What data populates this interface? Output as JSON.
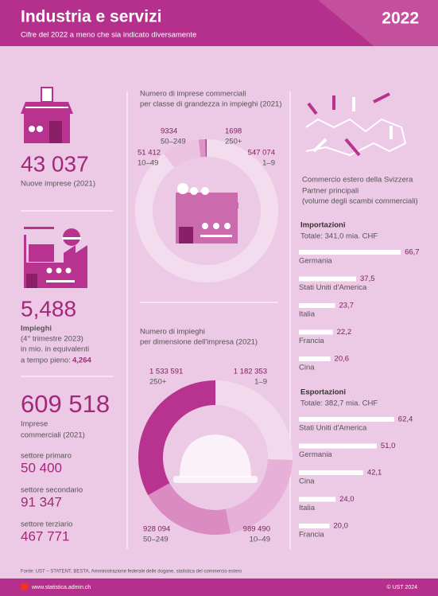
{
  "header": {
    "title": "Industria e servizi",
    "subtitle": "Cifre del 2022 a meno che sia indicato diversamente",
    "year": "2022"
  },
  "stats": {
    "new_firms": {
      "value": "43 037",
      "label": "Nuove imprese (2021)"
    },
    "jobs": {
      "value": "5,488",
      "label": "Impieghi",
      "note1": "(4° trimestre 2023)",
      "note2": "in mio. in equivalenti",
      "note3": "a tempo pieno:",
      "fte": "4,264"
    },
    "firms": {
      "value": "609 518",
      "label1": "Imprese",
      "label2": "commerciali (2021)",
      "sectors": [
        {
          "name": "settore primaro",
          "value": "50 400"
        },
        {
          "name": "settore secondario",
          "value": "91 347"
        },
        {
          "name": "settore terziario",
          "value": "467 771"
        }
      ]
    }
  },
  "trade": {
    "title": "Commercio estero della Svizzera",
    "line2": "Partner principali",
    "line3": "(volume degli scambi commerciali)"
  },
  "chart_data": [
    {
      "type": "pie",
      "title": [
        "Numero di imprese commerciali",
        "per classe di grandezza in impieghi (2021)"
      ],
      "categories": [
        "1–9",
        "10–49",
        "50–249",
        "250+"
      ],
      "values": [
        547074,
        51412,
        9334,
        1698
      ],
      "value_labels": [
        "547 074",
        "51 412",
        "9334",
        "1698"
      ],
      "colors": [
        "#f3dcee",
        "#ebc3e1",
        "#dc93c8",
        "#b8338f"
      ]
    },
    {
      "type": "pie",
      "title": [
        "Numero di impieghi",
        "per dimensione dell'impresa (2021)"
      ],
      "categories": [
        "1–9",
        "10–49",
        "50–249",
        "250+"
      ],
      "values": [
        1182353,
        989490,
        928094,
        1533591
      ],
      "value_labels": [
        "1 182 353",
        "989 490",
        "928 094",
        "1 533 591"
      ],
      "colors": [
        "#f2d9ec",
        "#e6b0d8",
        "#d98bc2",
        "#b8338f"
      ]
    },
    {
      "type": "bar",
      "title": "Importazioni",
      "subtitle": "Totale: 341,0 mia. CHF",
      "color": "#ffffff",
      "categories": [
        "Germania",
        "Stati Uniti d'America",
        "Italia",
        "Francia",
        "Cina"
      ],
      "values": [
        66.7,
        37.5,
        23.7,
        22.2,
        20.6
      ],
      "value_labels": [
        "66,7",
        "37,5",
        "23,7",
        "22,2",
        "20,6"
      ]
    },
    {
      "type": "bar",
      "title": "Esportazioni",
      "subtitle": "Totale: 382,7 mia. CHF",
      "color": "#ffffff",
      "categories": [
        "Stati Uniti d'America",
        "Germania",
        "Cina",
        "Italia",
        "Francia"
      ],
      "values": [
        62.4,
        51.0,
        42.1,
        24.0,
        20.0
      ],
      "value_labels": [
        "62,4",
        "51,0",
        "42,1",
        "24,0",
        "20,0"
      ]
    }
  ],
  "footer": {
    "source": "Fonte: UST – STATENT, BESTA, Amministrazione federale delle dogane, statistica del commercio estero",
    "url": "www.statistica.admin.ch",
    "copyright": "© UST 2024"
  }
}
